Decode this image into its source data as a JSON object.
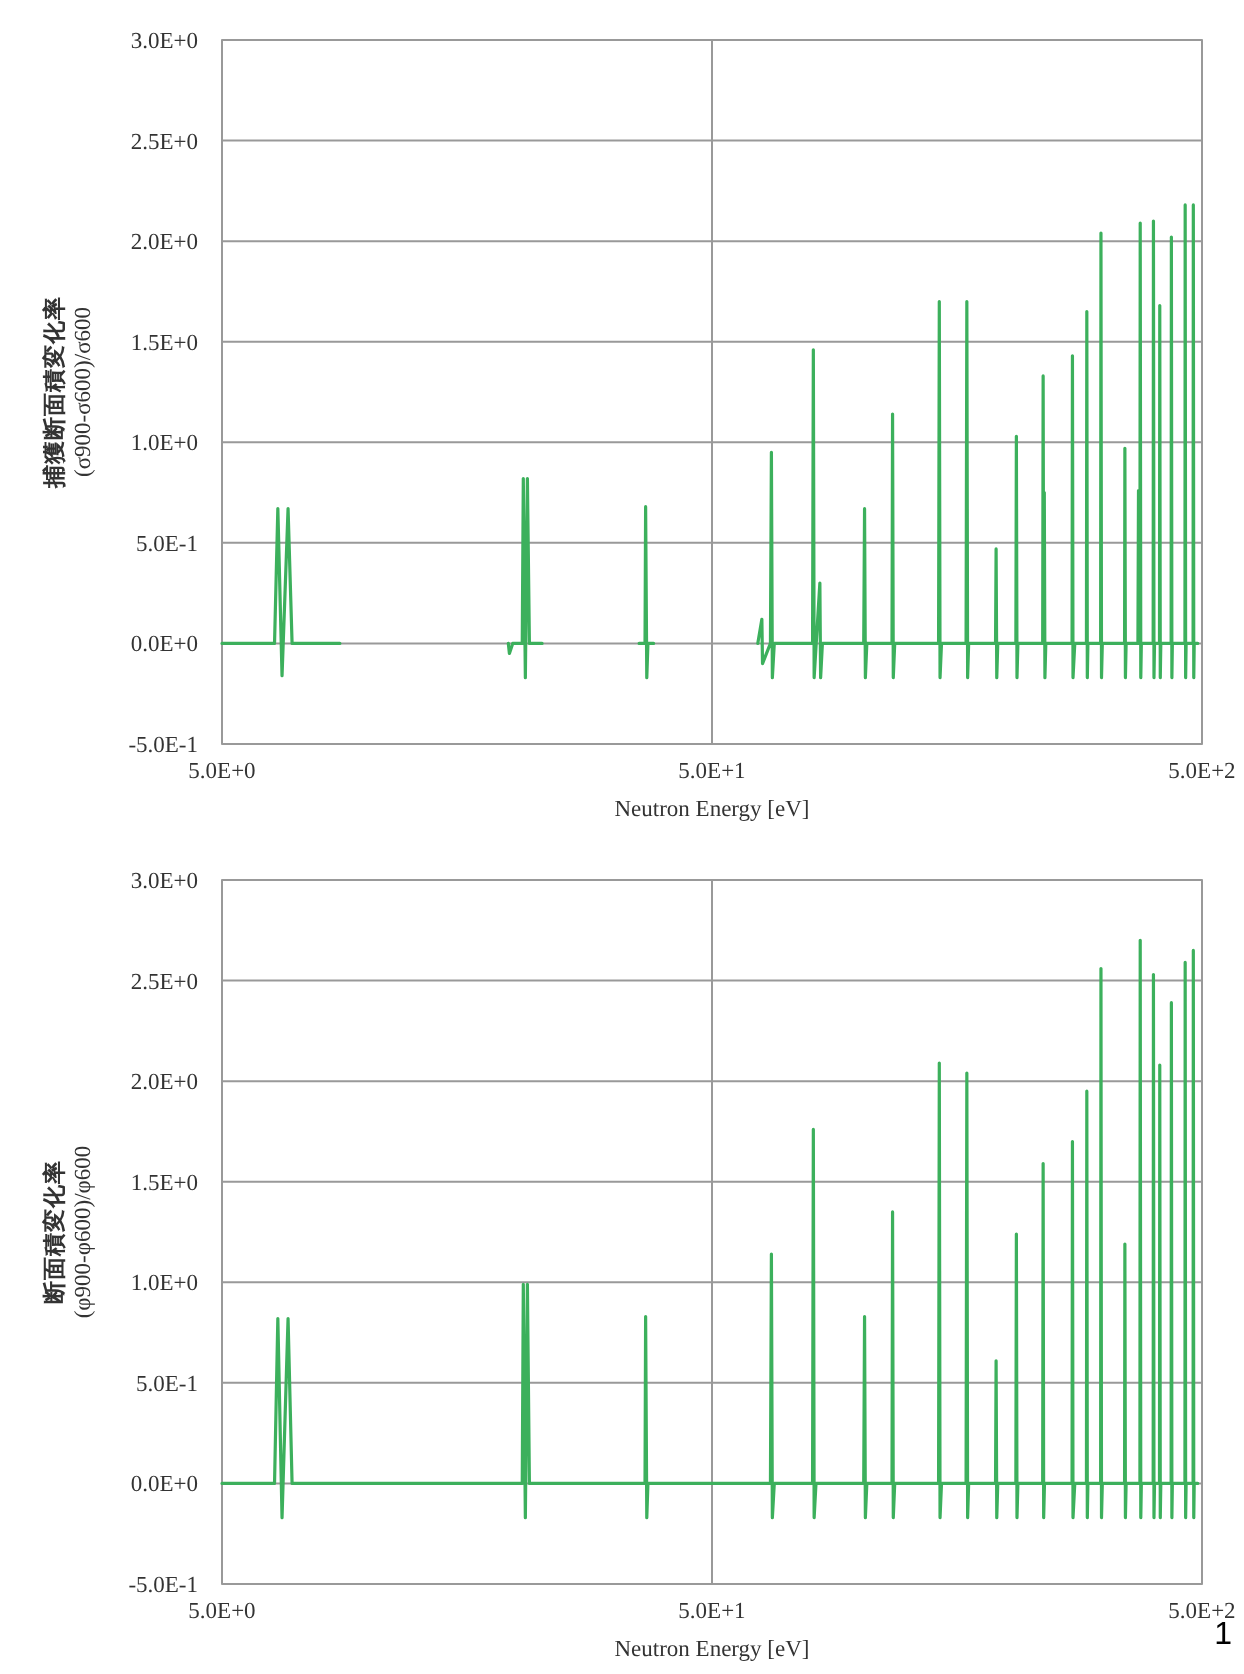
{
  "chart_data": [
    {
      "type": "line",
      "xlabel": "Neutron Energy [eV]",
      "ylabel": "捕獲断面積変化率\n(σ900-σ600)/σ600",
      "log": "x",
      "grid": true,
      "xlim": [
        5,
        500
      ],
      "ylim": [
        -0.5,
        3.0
      ],
      "xticks": [
        {
          "value": 5,
          "label": "5.0E+0"
        },
        {
          "value": 50,
          "label": "5.0E+1"
        },
        {
          "value": 500,
          "label": "5.0E+2"
        }
      ],
      "yticks": [
        {
          "value": -0.5,
          "label": "-5.0E-1"
        },
        {
          "value": 0,
          "label": "0.0E+0"
        },
        {
          "value": 0.5,
          "label": "5.0E-1"
        },
        {
          "value": 1.0,
          "label": "1.0E+0"
        },
        {
          "value": 1.5,
          "label": "1.5E+0"
        },
        {
          "value": 2.0,
          "label": "2.0E+0"
        },
        {
          "value": 2.5,
          "label": "2.5E+0"
        },
        {
          "value": 3.0,
          "label": "3.0E+0"
        }
      ],
      "series": [
        {
          "color": "#3cb05c",
          "x": [
            5,
            6.4,
            6.5,
            6.63,
            6.82,
            6.95,
            8.7
          ],
          "values": [
            0,
            0,
            0.67,
            -0.16,
            0.67,
            0,
            0
          ]
        },
        {
          "color": "#3cb05c",
          "x": [
            19.2,
            19.3,
            19.6,
            20.5,
            20.6,
            20.8,
            21.0,
            21.2,
            22.5
          ],
          "values": [
            0,
            -0.05,
            0,
            0,
            0.82,
            -0.17,
            0.82,
            0,
            0
          ]
        },
        {
          "color": "#3cb05c",
          "x": [
            35.5,
            36.5,
            36.6,
            36.8,
            37,
            38
          ],
          "values": [
            0,
            0,
            0.68,
            -0.17,
            0,
            0
          ]
        },
        {
          "color": "#3cb05c",
          "x": [
            62,
            63.2,
            63.4,
            65.8,
            66.1,
            66.4,
            67,
            80.2,
            80.5,
            80.8,
            83,
            83.3,
            84,
            102,
            102.4,
            102.8,
            103.5,
            116.5,
            116.8,
            117.2,
            118,
            145,
            145.5,
            146,
            147,
            165,
            165.6,
            166.2,
            167,
            189.5,
            190,
            190.6,
            191.5,
            208.5,
            209,
            209.6,
            210.5,
            236.5,
            237,
            237.6,
            238.3,
            239,
            240,
            271.5,
            272,
            272.7,
            275,
            290.5,
            291,
            291.7,
            292.5,
            310.5,
            311,
            311.8,
            313,
            347.5,
            348,
            348.9,
            350,
            370,
            371,
            372,
            373.5,
            374,
            375,
            376,
            397.5,
            398,
            399,
            400,
            409.5,
            410,
            411,
            412,
            432.5,
            433,
            434,
            435,
            461.5,
            462,
            463,
            464,
            479.5,
            480,
            481,
            482,
            490
          ],
          "values": [
            0,
            0.12,
            -0.1,
            0,
            0.95,
            -0.17,
            0,
            0,
            1.46,
            -0.17,
            0.3,
            -0.17,
            0,
            0,
            0.67,
            -0.17,
            0,
            0,
            1.14,
            -0.17,
            0,
            0,
            1.7,
            -0.17,
            0,
            0,
            1.7,
            -0.17,
            0,
            0,
            0.47,
            -0.17,
            0,
            0,
            1.03,
            -0.17,
            0,
            0,
            1.33,
            0,
            0.75,
            -0.17,
            0,
            0,
            1.43,
            -0.17,
            0,
            0,
            1.65,
            -0.17,
            0,
            0,
            2.04,
            -0.17,
            0,
            0,
            0.97,
            -0.17,
            0,
            0,
            0.76,
            0,
            0,
            2.09,
            -0.17,
            0,
            0,
            2.1,
            -0.17,
            0,
            0,
            1.68,
            -0.17,
            0,
            0,
            2.02,
            -0.17,
            0,
            0,
            2.18,
            -0.17,
            0,
            0,
            2.18,
            -0.17,
            0,
            0
          ]
        }
      ]
    },
    {
      "type": "line",
      "xlabel": "Neutron Energy [eV]",
      "ylabel": "断面積変化率\n(φ900-φ600)/φ600",
      "log": "x",
      "grid": true,
      "xlim": [
        5,
        500
      ],
      "ylim": [
        -0.5,
        3.0
      ],
      "xticks": [
        {
          "value": 5,
          "label": "5.0E+0"
        },
        {
          "value": 50,
          "label": "5.0E+1"
        },
        {
          "value": 500,
          "label": "5.0E+2"
        }
      ],
      "yticks": [
        {
          "value": -0.5,
          "label": "-5.0E-1"
        },
        {
          "value": 0,
          "label": "0.0E+0"
        },
        {
          "value": 0.5,
          "label": "5.0E-1"
        },
        {
          "value": 1.0,
          "label": "1.0E+0"
        },
        {
          "value": 1.5,
          "label": "1.5E+0"
        },
        {
          "value": 2.0,
          "label": "2.0E+0"
        },
        {
          "value": 2.5,
          "label": "2.5E+0"
        },
        {
          "value": 3.0,
          "label": "3.0E+0"
        }
      ],
      "annotations": [
        "1"
      ],
      "series": [
        {
          "color": "#3cb05c",
          "x": [
            5,
            6.4,
            6.5,
            6.63,
            6.82,
            6.95,
            20.5,
            20.6,
            20.8,
            21.0,
            21.2,
            36.5,
            36.6,
            36.8,
            37,
            65.8,
            66.1,
            66.4,
            67,
            80.2,
            80.5,
            80.8,
            81.5,
            102,
            102.4,
            102.8,
            103.5,
            116.5,
            116.8,
            117.2,
            118,
            145,
            145.5,
            146,
            147,
            165,
            165.6,
            166.2,
            167,
            189.5,
            190,
            190.6,
            191.5,
            208.5,
            209,
            209.6,
            210.5,
            236.5,
            237,
            237.6,
            238.5,
            271.5,
            272,
            272.7,
            275,
            290.5,
            291,
            291.7,
            292.5,
            310.5,
            311,
            311.8,
            313,
            347.5,
            348,
            348.9,
            350,
            373.5,
            374,
            375,
            376,
            397.5,
            398,
            399,
            400,
            409.5,
            410,
            411,
            412,
            432.5,
            433,
            434,
            435,
            461.5,
            462,
            463,
            464,
            479.5,
            480,
            481,
            482,
            490
          ],
          "values": [
            0,
            0,
            0.82,
            -0.17,
            0.82,
            0,
            0,
            0.99,
            -0.17,
            0.99,
            0,
            0,
            0.83,
            -0.17,
            0,
            0,
            1.14,
            -0.17,
            0,
            0,
            1.76,
            -0.17,
            0,
            0,
            0.83,
            -0.17,
            0,
            0,
            1.35,
            -0.17,
            0,
            0,
            2.09,
            -0.17,
            0,
            0,
            2.04,
            -0.17,
            0,
            0,
            0.61,
            -0.17,
            0,
            0,
            1.24,
            -0.17,
            0,
            0,
            1.59,
            -0.17,
            0,
            0,
            1.7,
            -0.17,
            0,
            0,
            1.95,
            -0.17,
            0,
            0,
            2.56,
            -0.17,
            0,
            0,
            1.19,
            -0.17,
            0,
            0,
            2.7,
            -0.17,
            0,
            0,
            2.53,
            -0.17,
            0,
            0,
            2.08,
            -0.17,
            0,
            0,
            2.39,
            -0.17,
            0,
            0,
            2.59,
            -0.17,
            0,
            0,
            2.65,
            -0.17,
            0,
            0
          ]
        }
      ]
    }
  ]
}
